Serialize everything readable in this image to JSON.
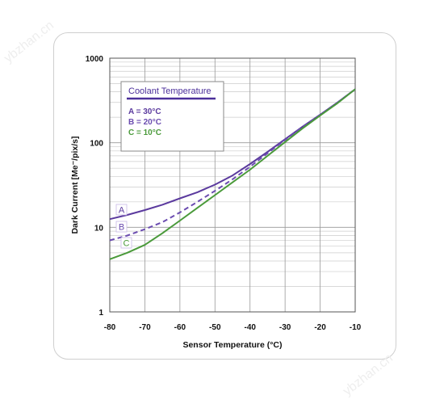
{
  "watermarks": [
    "ybzhan.cn",
    "ybzhan.cn"
  ],
  "chart_data": {
    "type": "line",
    "title": "",
    "xlabel": "Sensor Temperature (°C)",
    "ylabel": "Dark Current [Me⁻/pix/s]",
    "xlim": [
      -80,
      -10
    ],
    "ylim": [
      1,
      1000
    ],
    "yscale": "log",
    "grid": true,
    "xticks": [
      -80,
      -70,
      -60,
      -50,
      -40,
      -30,
      -20,
      -10
    ],
    "x_tick_labels": [
      "-80",
      "-70",
      "-60",
      "-50",
      "-40",
      "-30",
      "-20",
      "-10"
    ],
    "yticks": [
      1,
      10,
      100,
      1000
    ],
    "y_tick_labels": [
      "1",
      "10",
      "100",
      "1000"
    ],
    "legend": {
      "title": "Coolant Temperature",
      "placement": "top-left",
      "entries": [
        "A = 30°C",
        "B = 20°C",
        "C = 10°C"
      ]
    },
    "series": [
      {
        "name": "A = 30°C",
        "label": "A",
        "color": "#5b3a9e",
        "style": "solid",
        "x": [
          -80,
          -75,
          -70,
          -65,
          -60,
          -55,
          -50,
          -45,
          -40,
          -35,
          -30,
          -25,
          -20,
          -15,
          -10
        ],
        "y": [
          12.5,
          14,
          16,
          18.5,
          22,
          26,
          32,
          41,
          56,
          78,
          110,
          155,
          215,
          300,
          430
        ]
      },
      {
        "name": "B = 20°C",
        "label": "B",
        "color": "#6b4cb0",
        "style": "dashed",
        "x": [
          -80,
          -75,
          -70,
          -65,
          -60,
          -55,
          -50,
          -45,
          -40,
          -35,
          -30,
          -25,
          -20,
          -15,
          -10
        ],
        "y": [
          7,
          8,
          9.5,
          11.5,
          15,
          20,
          27,
          37,
          52,
          75,
          108,
          155,
          215,
          300,
          430
        ]
      },
      {
        "name": "C = 10°C",
        "label": "C",
        "color": "#4a9a3a",
        "style": "solid",
        "x": [
          -80,
          -75,
          -70,
          -65,
          -60,
          -55,
          -50,
          -45,
          -40,
          -35,
          -30,
          -25,
          -20,
          -15,
          -10
        ],
        "y": [
          4.2,
          5,
          6.2,
          8.5,
          12,
          17,
          24,
          34,
          48,
          70,
          102,
          148,
          210,
          295,
          430
        ]
      }
    ]
  }
}
